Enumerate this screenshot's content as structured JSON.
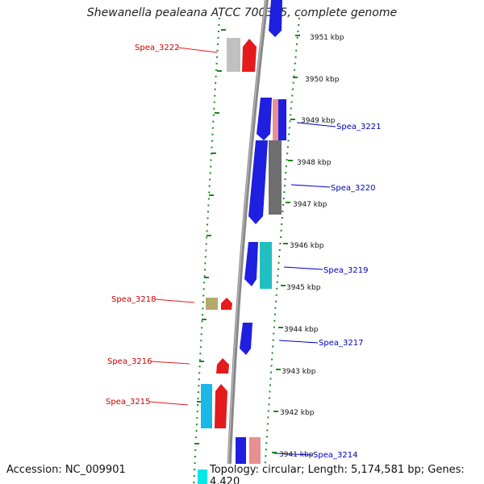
{
  "title": "Shewanella pealeana ATCC 700345, complete genome",
  "footer": {
    "accession": "Accession: NC_009901",
    "summary": "Topology: circular; Length: 5,174,581 bp; Genes: 4,420"
  },
  "colors": {
    "forward": "#e41a1c",
    "reverse": "#1f1fe0",
    "left_label": "#cc0000",
    "right_label": "#0000bb",
    "ring_dots": "#1a8a1a",
    "backbone": "#888888"
  },
  "kbp_ticks": [
    "3951 kbp",
    "3950 kbp",
    "3949 kbp",
    "3948 kbp",
    "3947 kbp",
    "3946 kbp",
    "3945 kbp",
    "3944 kbp",
    "3943 kbp",
    "3942 kbp",
    "3941 kbp"
  ],
  "gene_labels": {
    "left": [
      "Spea_3222",
      "Spea_3218",
      "Spea_3216",
      "Spea_3215"
    ],
    "right": [
      "Spea_3221",
      "Spea_3220",
      "Spea_3219",
      "Spea_3217",
      "Spea_3214"
    ]
  }
}
